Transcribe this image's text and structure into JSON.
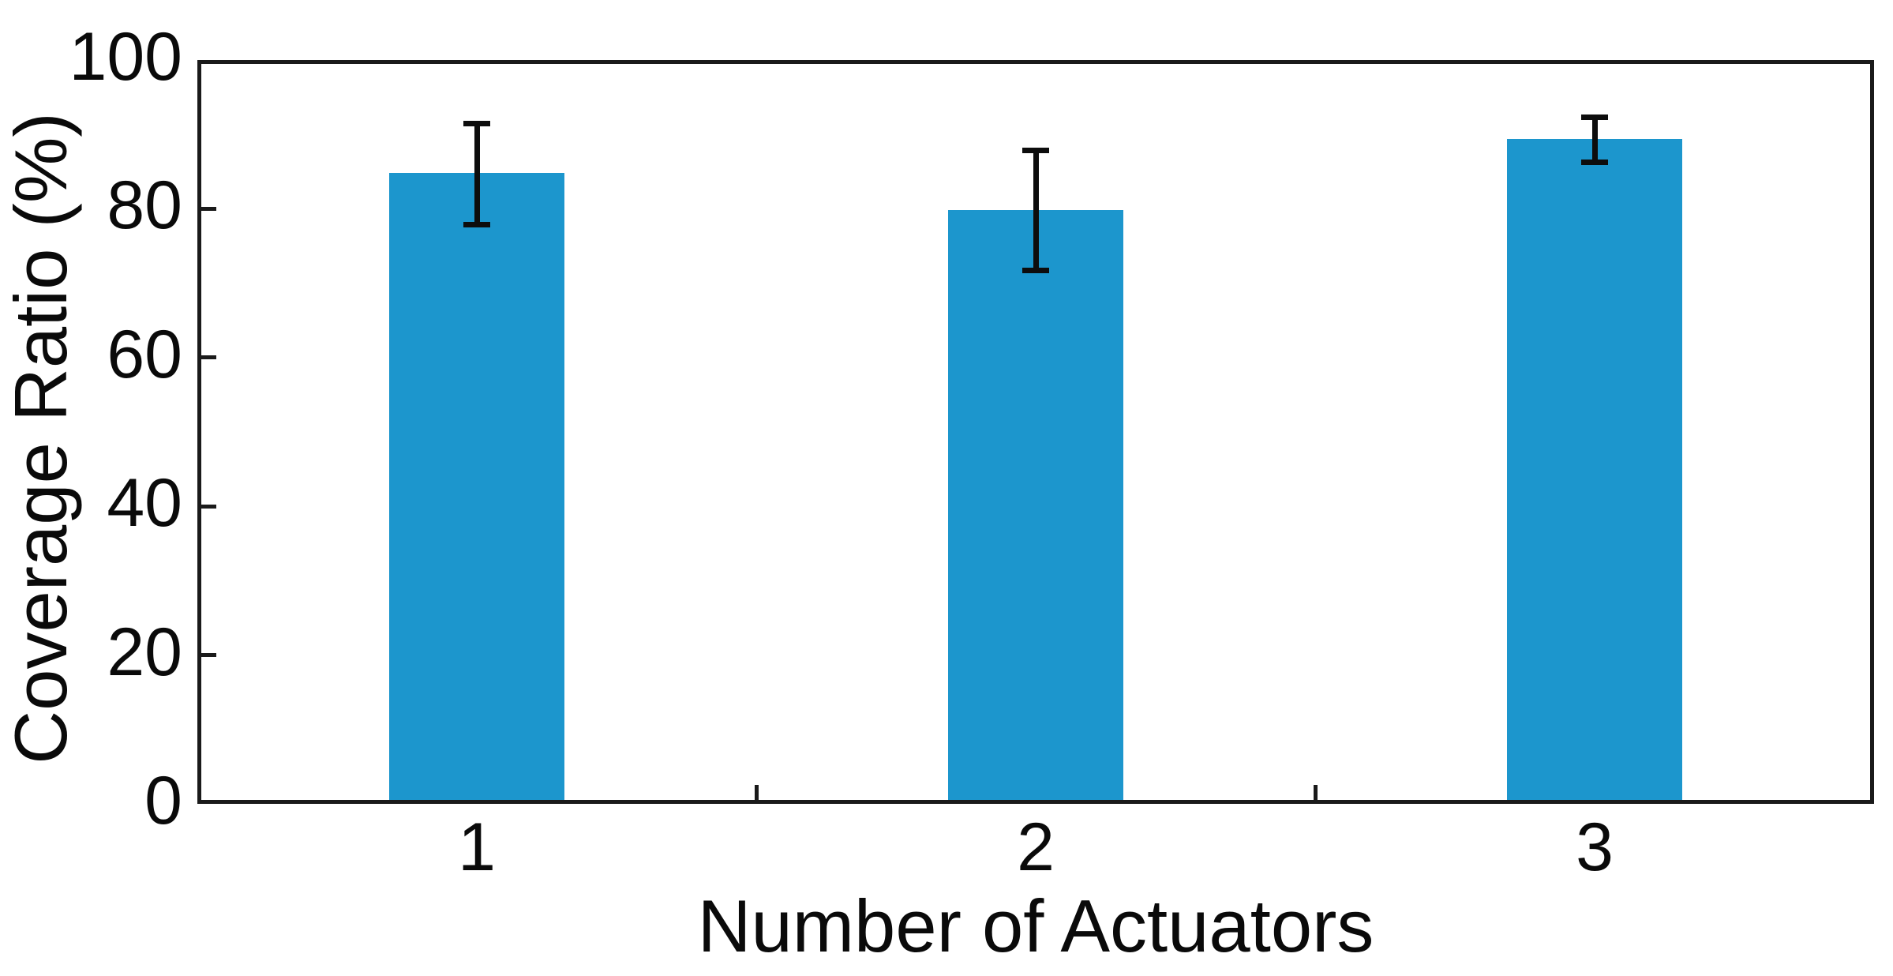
{
  "chart_data": {
    "type": "bar",
    "title": "",
    "xlabel": "Number of Actuators",
    "ylabel": "Coverage Ratio (%)",
    "categories": [
      "1",
      "2",
      "3"
    ],
    "values": [
      84.8,
      79.8,
      89.4
    ],
    "error_plus": [
      6.7,
      8.0,
      2.9
    ],
    "error_minus": [
      6.9,
      8.1,
      3.1
    ],
    "ylim": [
      0,
      100
    ],
    "yticks": [
      0,
      20,
      40,
      60,
      80,
      100
    ],
    "ytick_labels": [
      "0",
      "20",
      "40",
      "60",
      "80",
      "100"
    ],
    "x_boundary_ticks": [
      1.5,
      2.5
    ],
    "bar_color": "#1c96cd",
    "axis_color": "#1a1a1a",
    "error_color": "#0d0d0d",
    "grid": false,
    "legend": "none",
    "bar_width_fraction": 0.314
  }
}
